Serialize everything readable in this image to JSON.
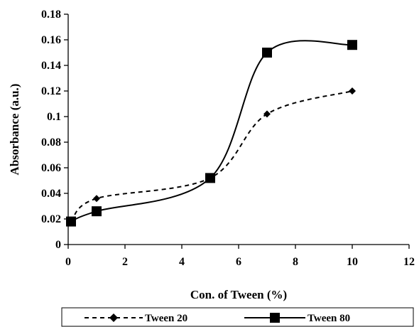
{
  "chart_data": {
    "type": "line",
    "xlabel": "Con. of Tween (%)",
    "ylabel": "Absorbance (a.u.)",
    "xlim": [
      0,
      12
    ],
    "ylim": [
      0,
      0.18
    ],
    "x_ticks": [
      "0",
      "2",
      "4",
      "6",
      "8",
      "10",
      "12"
    ],
    "y_ticks": [
      "0",
      "0.02",
      "0.04",
      "0.06",
      "0.08",
      "0.1",
      "0.12",
      "0.14",
      "0.16",
      "0.18"
    ],
    "grid": false,
    "legend_position": "bottom",
    "series": [
      {
        "name": "Tween 20",
        "marker": "diamond",
        "line_style": "dashed",
        "color": "#000000",
        "x": [
          0.1,
          1,
          5,
          7,
          10
        ],
        "y": [
          0.018,
          0.036,
          0.052,
          0.102,
          0.12
        ]
      },
      {
        "name": "Tween 80",
        "marker": "square",
        "line_style": "solid",
        "color": "#000000",
        "x": [
          0.1,
          1,
          5,
          7,
          10
        ],
        "y": [
          0.018,
          0.026,
          0.052,
          0.15,
          0.156
        ]
      }
    ]
  }
}
